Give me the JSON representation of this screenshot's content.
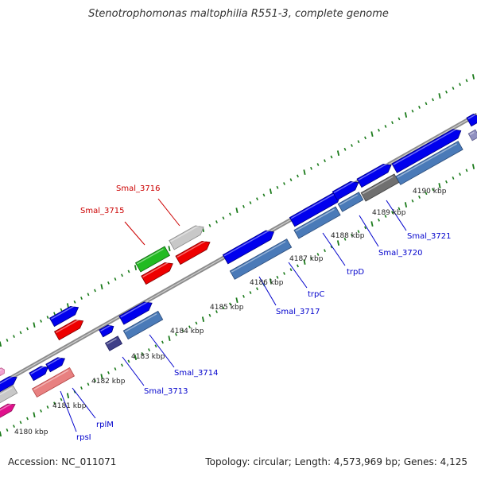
{
  "title": "Stenotrophomonas maltophilia R551-3, complete genome",
  "footer": {
    "accession": "Accession: NC_011071",
    "summary": "Topology: circular; Length: 4,573,969 bp; Genes: 4,125"
  },
  "colors": {
    "backbone": "#8c8c8c",
    "ticks": "#1a7a1a",
    "forward_gene": "#0000ee",
    "reverse_gene": "#ee0000",
    "label_blue": "#0000cc",
    "label_red": "#cc0000"
  },
  "kbp_ticks": [
    "4180 kbp",
    "4181 kbp",
    "4182 kbp",
    "4183 kbp",
    "4184 kbp",
    "4185 kbp",
    "4186 kbp",
    "4187 kbp",
    "4188 kbp",
    "4189 kbp",
    "4190 kbp"
  ],
  "gene_labels": [
    {
      "text": "rpsI",
      "color": "blue"
    },
    {
      "text": "rplM",
      "color": "blue"
    },
    {
      "text": "Smal_3713",
      "color": "blue"
    },
    {
      "text": "Smal_3714",
      "color": "blue"
    },
    {
      "text": "Smal_3715",
      "color": "red"
    },
    {
      "text": "Smal_3716",
      "color": "red"
    },
    {
      "text": "Smal_3717",
      "color": "blue"
    },
    {
      "text": "trpC",
      "color": "blue"
    },
    {
      "text": "trpD",
      "color": "blue"
    },
    {
      "text": "Smal_3720",
      "color": "blue"
    },
    {
      "text": "Smal_3721",
      "color": "blue"
    }
  ]
}
